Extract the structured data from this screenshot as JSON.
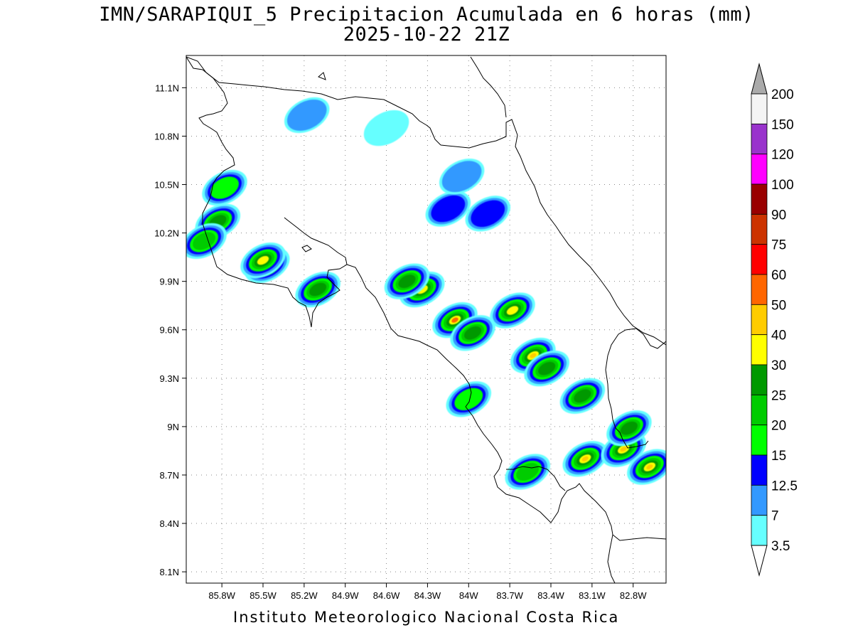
{
  "title": {
    "line1": "IMN/SARAPIQUI_5 Precipitacion Acumulada en 6 horas (mm)",
    "line2": "2025-10-22 21Z"
  },
  "footer": "Instituto Meteorologico Nacional Costa Rica",
  "map": {
    "lon_range": [
      -86.06,
      -82.56
    ],
    "lat_range": [
      8.03,
      11.3
    ],
    "lat_ticks": [
      "11.1N",
      "10.8N",
      "10.5N",
      "10.2N",
      "9.9N",
      "9.6N",
      "9.3N",
      "9N",
      "8.7N",
      "8.4N",
      "8.1N"
    ],
    "lat_values": [
      11.1,
      10.8,
      10.5,
      10.2,
      9.9,
      9.6,
      9.3,
      9.0,
      8.7,
      8.4,
      8.1
    ],
    "lon_ticks": [
      "85.8W",
      "85.5W",
      "85.2W",
      "84.9W",
      "84.6W",
      "84.3W",
      "84W",
      "83.7W",
      "83.4W",
      "83.1W",
      "82.8W"
    ],
    "lon_values": [
      -85.8,
      -85.5,
      -85.2,
      -84.9,
      -84.6,
      -84.3,
      -84.0,
      -83.7,
      -83.4,
      -83.1,
      -82.8
    ],
    "grid": "dotted"
  },
  "legend": {
    "labels": [
      "200",
      "150",
      "120",
      "100",
      "90",
      "75",
      "60",
      "50",
      "40",
      "30",
      "25",
      "20",
      "15",
      "12.5",
      "7",
      "3.5"
    ],
    "colors": [
      "#f4f4f4",
      "#9933cc",
      "#ff00ff",
      "#990000",
      "#cc3300",
      "#ff0000",
      "#ff6600",
      "#ffcc00",
      "#ffff00",
      "#009900",
      "#00cc00",
      "#00ff00",
      "#0000ff",
      "#3399ff",
      "#66ffff"
    ],
    "over_color": "#aaaaaa",
    "under_color": "#ffffff"
  },
  "chart_data": {
    "type": "heatmap",
    "title": "IMN/SARAPIQUI_5 Precipitacion Acumulada en 6 horas (mm)",
    "subtitle": "2025-10-22 21Z",
    "units": "mm",
    "cells": [
      {
        "lon": -85.47,
        "lat": 10.0,
        "value": 40
      },
      {
        "lon": -85.5,
        "lat": 10.03,
        "value": 30
      },
      {
        "lon": -85.83,
        "lat": 10.27,
        "value": 25
      },
      {
        "lon": -85.93,
        "lat": 10.15,
        "value": 20
      },
      {
        "lon": -85.78,
        "lat": 10.48,
        "value": 15
      },
      {
        "lon": -85.1,
        "lat": 9.85,
        "value": 25
      },
      {
        "lon": -84.34,
        "lat": 9.85,
        "value": 30
      },
      {
        "lon": -84.45,
        "lat": 9.9,
        "value": 25
      },
      {
        "lon": -84.1,
        "lat": 9.66,
        "value": 50
      },
      {
        "lon": -83.97,
        "lat": 9.58,
        "value": 25
      },
      {
        "lon": -83.68,
        "lat": 9.72,
        "value": 30
      },
      {
        "lon": -83.53,
        "lat": 9.44,
        "value": 40
      },
      {
        "lon": -83.43,
        "lat": 9.36,
        "value": 25
      },
      {
        "lon": -83.17,
        "lat": 9.19,
        "value": 25
      },
      {
        "lon": -83.15,
        "lat": 8.8,
        "value": 40
      },
      {
        "lon": -82.87,
        "lat": 8.86,
        "value": 40
      },
      {
        "lon": -82.68,
        "lat": 8.75,
        "value": 40
      },
      {
        "lon": -82.83,
        "lat": 8.99,
        "value": 25
      },
      {
        "lon": -83.57,
        "lat": 8.72,
        "value": 20
      },
      {
        "lon": -84.0,
        "lat": 9.17,
        "value": 15
      },
      {
        "lon": -84.15,
        "lat": 10.35,
        "value": 12.5
      },
      {
        "lon": -83.86,
        "lat": 10.32,
        "value": 12.5
      },
      {
        "lon": -84.05,
        "lat": 10.55,
        "value": 7
      },
      {
        "lon": -84.6,
        "lat": 10.85,
        "value": 3.5
      },
      {
        "lon": -85.18,
        "lat": 10.93,
        "value": 7
      }
    ]
  }
}
